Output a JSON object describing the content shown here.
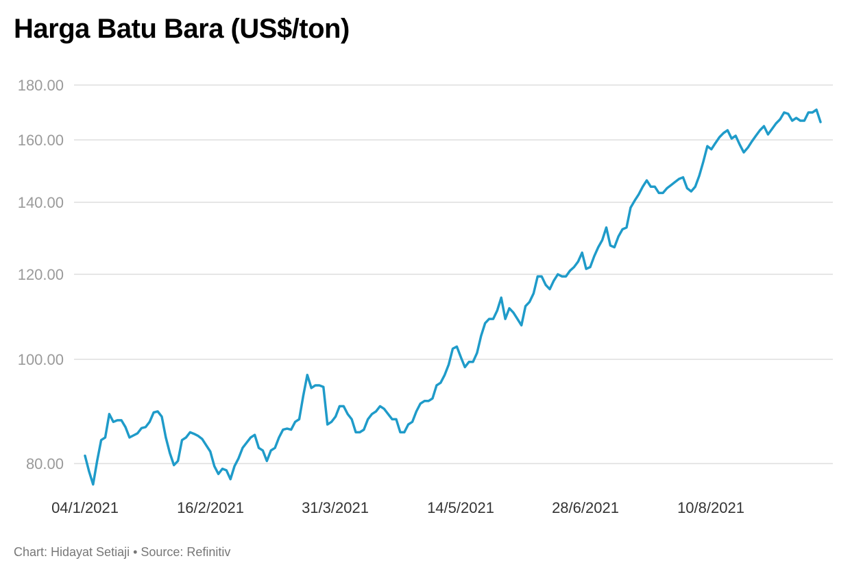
{
  "chart_data": {
    "type": "line",
    "title": "Harga Batu Bara (US$/ton)",
    "xlabel": "",
    "ylabel": "",
    "y_ticks": [
      "80.00",
      "100.00",
      "120.00",
      "140.00",
      "160.00",
      "180.00"
    ],
    "x_tick_labels": [
      "04/1/2021",
      "16/2/2021",
      "31/3/2021",
      "14/5/2021",
      "28/6/2021",
      "10/8/2021"
    ],
    "grid": true,
    "legend": "none",
    "series": [
      {
        "color": "#1f9bc9",
        "values": [
          81.5,
          78.5,
          76.0,
          80.5,
          84.5,
          85.0,
          89.5,
          88.0,
          88.3,
          88.3,
          87.0,
          85.0,
          85.4,
          85.8,
          86.8,
          87.0,
          88.0,
          89.8,
          90.0,
          89.0,
          85.0,
          82.0,
          79.7,
          80.5,
          84.5,
          85.0,
          86.0,
          85.7,
          85.3,
          84.7,
          83.5,
          82.3,
          79.5,
          78.0,
          79.0,
          78.7,
          77.0,
          79.5,
          81.0,
          83.0,
          84.0,
          85.0,
          85.5,
          83.0,
          82.5,
          80.5,
          82.5,
          83.0,
          85.0,
          86.5,
          86.7,
          86.5,
          88.0,
          88.5,
          93.0,
          97.0,
          94.5,
          95.0,
          95.0,
          94.7,
          87.5,
          88.0,
          89.0,
          91.0,
          91.0,
          89.5,
          88.5,
          86.0,
          86.0,
          86.5,
          88.5,
          89.5,
          90.0,
          91.0,
          90.5,
          89.5,
          88.5,
          88.5,
          86.0,
          86.0,
          87.5,
          88.0,
          90.0,
          91.5,
          92.0,
          92.0,
          92.5,
          95.0,
          95.5,
          97.0,
          99.0,
          102.5,
          103.0,
          100.5,
          98.5,
          99.5,
          99.5,
          101.5,
          105.5,
          108.5,
          109.5,
          109.5,
          111.5,
          114.5,
          109.5,
          112.0,
          111.0,
          109.5,
          108.0,
          112.5,
          113.5,
          115.5,
          119.5,
          119.5,
          117.5,
          116.5,
          118.5,
          120.0,
          119.5,
          119.5,
          121.0,
          122.0,
          123.5,
          126.0,
          121.5,
          122.0,
          125.0,
          127.5,
          129.5,
          133.0,
          128.0,
          127.5,
          130.5,
          132.5,
          133.0,
          138.5,
          140.5,
          142.5,
          145.0,
          147.0,
          145.0,
          145.0,
          143.0,
          143.0,
          144.5,
          145.5,
          146.5,
          147.5,
          148.0,
          144.5,
          143.5,
          145.0,
          148.5,
          153.0,
          158.0,
          157.0,
          159.0,
          161.0,
          162.5,
          163.5,
          160.5,
          161.5,
          158.5,
          156.0,
          157.5,
          159.5,
          161.5,
          163.5,
          165.0,
          162.0,
          164.0,
          166.0,
          167.5,
          170.0,
          169.5,
          167.0,
          168.0,
          167.0,
          167.0,
          170.0,
          170.0,
          171.0,
          166.5
        ]
      }
    ]
  },
  "footer": {
    "credit": "Chart: Hidayat Setiaji • Source: Refinitiv"
  }
}
